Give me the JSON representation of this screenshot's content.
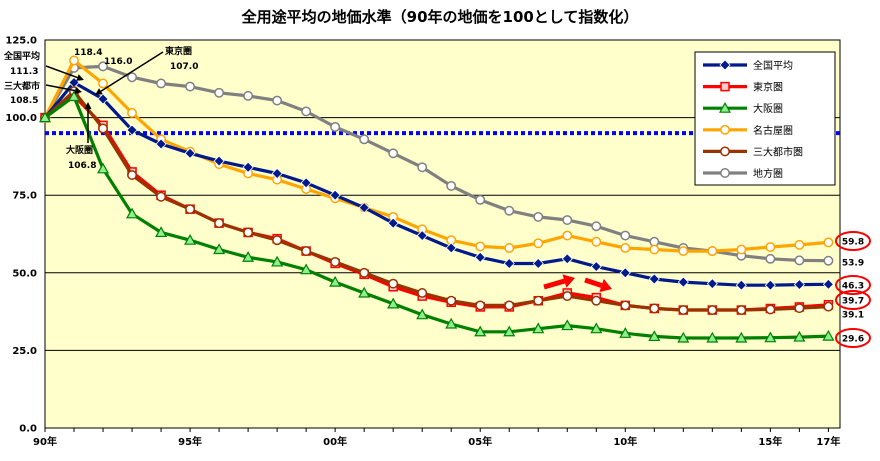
{
  "chart_data": {
    "type": "line",
    "title": "全用途平均の地価水準（90年の地価を100として指数化）",
    "xlabel": "",
    "ylabel": "",
    "x": [
      1990,
      1991,
      1992,
      1993,
      1994,
      1995,
      1996,
      1997,
      1998,
      1999,
      2000,
      2001,
      2002,
      2003,
      2004,
      2005,
      2006,
      2007,
      2008,
      2009,
      2010,
      2011,
      2012,
      2013,
      2014,
      2015,
      2016,
      2017
    ],
    "x_ticks": [
      {
        "year": 1990,
        "label": "90年"
      },
      {
        "year": 1995,
        "label": "95年"
      },
      {
        "year": 2000,
        "label": "00年"
      },
      {
        "year": 2005,
        "label": "05年"
      },
      {
        "year": 2010,
        "label": "10年"
      },
      {
        "year": 2015,
        "label": "15年"
      },
      {
        "year": 2017,
        "label": "17年"
      }
    ],
    "ylim": [
      0,
      125
    ],
    "y_ticks": [
      "0.0",
      "25.0",
      "50.0",
      "75.0",
      "100.0",
      "125.0"
    ],
    "grid": true,
    "reference_line": 95,
    "series": [
      {
        "name": "全国平均",
        "color": "#001a8c",
        "marker": "diamond",
        "values": [
          100,
          111.3,
          106,
          96,
          91.5,
          88.5,
          86,
          84,
          82,
          79,
          75,
          71,
          66,
          62,
          58,
          55,
          53,
          53,
          54.5,
          52,
          50,
          48,
          47,
          46.5,
          46,
          46,
          46.2,
          46.3
        ]
      },
      {
        "name": "東京圏",
        "color": "#ff0000",
        "marker": "square",
        "values": [
          100,
          107,
          97.5,
          82.5,
          75,
          70.5,
          66,
          63,
          61,
          57,
          53,
          49.5,
          45.5,
          42.5,
          40.5,
          39,
          39,
          41,
          43.5,
          42,
          39.5,
          38.5,
          38,
          38,
          38,
          38.5,
          39,
          39.7
        ]
      },
      {
        "name": "大阪圏",
        "color": "#008000",
        "marker": "triangle",
        "values": [
          100,
          106.8,
          83.5,
          69,
          63,
          60.5,
          57.5,
          55,
          53.5,
          51,
          47,
          43.5,
          40,
          36.5,
          33.5,
          31,
          31,
          32,
          33,
          32,
          30.5,
          29.5,
          29,
          29,
          29,
          29.1,
          29.3,
          29.6
        ]
      },
      {
        "name": "名古屋圏",
        "color": "#ffa500",
        "marker": "circle",
        "values": [
          100,
          118.4,
          111,
          101.5,
          93,
          89,
          85,
          82,
          80,
          77,
          74,
          71,
          68,
          64,
          60.5,
          58.5,
          58,
          59.5,
          62,
          60,
          58,
          57.5,
          57,
          57,
          57.5,
          58.3,
          59,
          59.8
        ]
      },
      {
        "name": "三大都市圏",
        "color": "#993300",
        "marker": "circle",
        "values": [
          100,
          108.5,
          96.5,
          81.5,
          74.5,
          70.5,
          66,
          63,
          60.5,
          57,
          53.5,
          50,
          46.5,
          43.5,
          41,
          39.5,
          39.5,
          41,
          42.5,
          41,
          39.5,
          38.5,
          38,
          38,
          38,
          38.2,
          38.6,
          39.1
        ]
      },
      {
        "name": "地方圏",
        "color": "#808080",
        "marker": "circle",
        "values": [
          100,
          116,
          116.5,
          113,
          111,
          110,
          108,
          107,
          105.5,
          102,
          97,
          93,
          88.5,
          84,
          78,
          73.5,
          70,
          68,
          67,
          65,
          62,
          60,
          58,
          57,
          55.5,
          54.5,
          54,
          53.9
        ]
      }
    ],
    "annotations": {
      "start": [
        {
          "series": "全国平均",
          "name": "全国平均",
          "value": "111.3"
        },
        {
          "series": "三大都市圏",
          "name": "三大都市",
          "value": "108.5"
        },
        {
          "series": "名古屋圏",
          "name": "",
          "value": "118.4"
        },
        {
          "series": "地方圏",
          "name": "",
          "value": "116.0"
        },
        {
          "series": "東京圏",
          "name": "東京圏",
          "value": "107.0"
        },
        {
          "series": "大阪圏",
          "name": "大阪圏",
          "value": "106.8"
        }
      ],
      "end": [
        {
          "series": "名古屋圏",
          "value": "59.8",
          "circled": true
        },
        {
          "series": "地方圏",
          "value": "53.9",
          "circled": false
        },
        {
          "series": "全国平均",
          "value": "46.3",
          "circled": true
        },
        {
          "series": "東京圏",
          "value": "39.7",
          "circled": true
        },
        {
          "series": "三大都市圏",
          "value": "39.1",
          "circled": false
        },
        {
          "series": "大阪圏",
          "value": "29.6",
          "circled": true
        }
      ]
    },
    "colors": {
      "plot_bg": "#ffffcc",
      "reference_line": "#0000ff",
      "arrow": "#ff0000",
      "circle": "#ff0000"
    }
  }
}
